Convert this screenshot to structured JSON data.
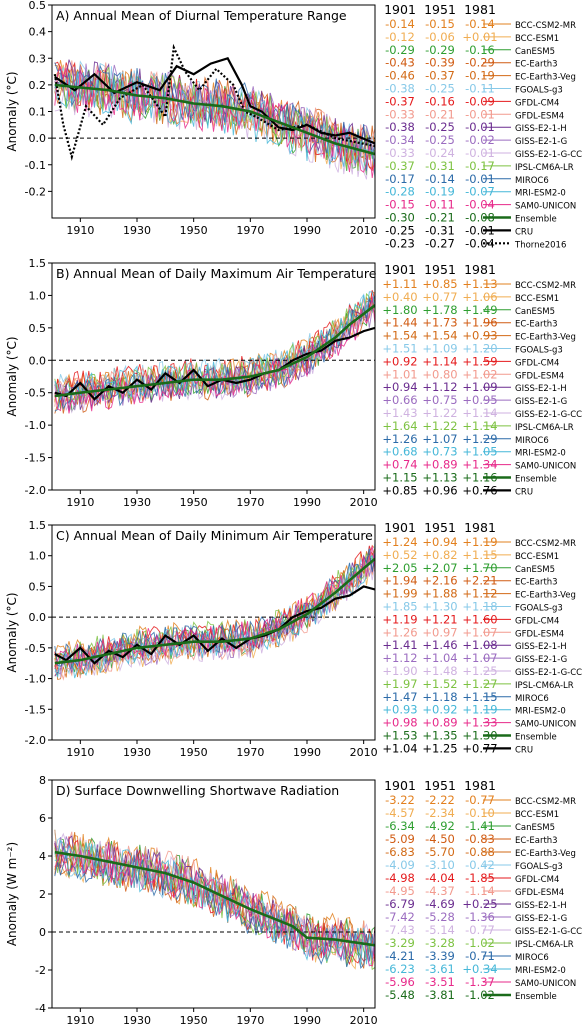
{
  "figure": {
    "models": [
      "BCC-CSM2-MR",
      "BCC-ESM1",
      "CanESM5",
      "EC-Earth3",
      "EC-Earth3-Veg",
      "FGOALS-g3",
      "GFDL-CM4",
      "GFDL-ESM4",
      "GISS-E2-1-H",
      "GISS-E2-1-G",
      "GISS-E2-1-G-CC",
      "IPSL-CM6A-LR",
      "MIROC6",
      "MRI-ESM2-0",
      "SAM0-UNICON"
    ],
    "model_colors": [
      "#e2801f",
      "#f0ad52",
      "#2e9e30",
      "#d05b12",
      "#d26a16",
      "#87c9e8",
      "#e41a1c",
      "#f29a8e",
      "#6a2c8f",
      "#9b6cc0",
      "#cfb2e0",
      "#7dc242",
      "#2b6aa8",
      "#45b7d8",
      "#e7298a"
    ],
    "ensemble_color": "#1a6b1a",
    "obs_color": "#000000"
  },
  "chart_data": [
    {
      "type": "line",
      "title": "A) Annual Mean of Diurnal Temperature Range",
      "ylabel": "Anomaly (°C)",
      "xlim": [
        1900,
        2014
      ],
      "ylim": [
        -0.3,
        0.5
      ],
      "yticks": [
        "-0.2",
        "-0.1",
        "0.0",
        "0.1",
        "0.2",
        "0.3",
        "0.4",
        "0.5"
      ],
      "ytick_values": [
        -0.2,
        -0.1,
        0.0,
        0.1,
        0.2,
        0.3,
        0.4,
        0.5
      ],
      "xticks": [
        "1910",
        "1930",
        "1950",
        "1970",
        "1990",
        "2010"
      ],
      "zero_line": "dashed",
      "column_headers": [
        "1901",
        "1951",
        "1981"
      ],
      "trend_rows": [
        {
          "name": "BCC-CSM2-MR",
          "values": [
            "-0.14",
            "-0.15",
            "-0.14"
          ]
        },
        {
          "name": "BCC-ESM1",
          "values": [
            "-0.12",
            "-0.06",
            "+0.01"
          ]
        },
        {
          "name": "CanESM5",
          "values": [
            "-0.29",
            "-0.29",
            "-0.16"
          ]
        },
        {
          "name": "EC-Earth3",
          "values": [
            "-0.43",
            "-0.39",
            "-0.29"
          ]
        },
        {
          "name": "EC-Earth3-Veg",
          "values": [
            "-0.46",
            "-0.37",
            "-0.19"
          ]
        },
        {
          "name": "FGOALS-g3",
          "values": [
            "-0.38",
            "-0.25",
            "-0.11"
          ]
        },
        {
          "name": "GFDL-CM4",
          "values": [
            "-0.37",
            "-0.16",
            "-0.09"
          ]
        },
        {
          "name": "GFDL-ESM4",
          "values": [
            "-0.33",
            "-0.21",
            "-0.01"
          ]
        },
        {
          "name": "GISS-E2-1-H",
          "values": [
            "-0.38",
            "-0.25",
            "-0.01"
          ]
        },
        {
          "name": "GISS-E2-1-G",
          "values": [
            "-0.34",
            "-0.25",
            "-0.02"
          ]
        },
        {
          "name": "GISS-E2-1-G-CC",
          "values": [
            "-0.33",
            "-0.24",
            "-0.01"
          ]
        },
        {
          "name": "IPSL-CM6A-LR",
          "values": [
            "-0.37",
            "-0.31",
            "-0.17"
          ]
        },
        {
          "name": "MIROC6",
          "values": [
            "-0.17",
            "-0.14",
            "-0.01"
          ]
        },
        {
          "name": "MRI-ESM2-0",
          "values": [
            "-0.28",
            "-0.19",
            "-0.07"
          ]
        },
        {
          "name": "SAM0-UNICON",
          "values": [
            "-0.15",
            "-0.11",
            "-0.04"
          ]
        },
        {
          "name": "Ensemble",
          "values": [
            "-0.30",
            "-0.21",
            "-0.08"
          ]
        },
        {
          "name": "CRU",
          "values": [
            "-0.25",
            "-0.31",
            "-0.01"
          ]
        },
        {
          "name": "Thorne2016",
          "values": [
            "-0.23",
            "-0.27",
            "-0.04"
          ]
        }
      ],
      "ensemble": {
        "x": [
          1901,
          1910,
          1920,
          1930,
          1940,
          1950,
          1960,
          1970,
          1980,
          1990,
          2000,
          2014
        ],
        "y": [
          0.2,
          0.19,
          0.18,
          0.16,
          0.15,
          0.13,
          0.12,
          0.1,
          0.06,
          0.02,
          -0.02,
          -0.06
        ]
      },
      "obs": [
        {
          "name": "CRU",
          "x": [
            1901,
            1908,
            1915,
            1922,
            1930,
            1938,
            1944,
            1950,
            1956,
            1962,
            1967,
            1970,
            1974,
            1980,
            1985,
            1990,
            1995,
            2000,
            2005,
            2014
          ],
          "y": [
            0.23,
            0.18,
            0.24,
            0.17,
            0.21,
            0.18,
            0.27,
            0.24,
            0.28,
            0.3,
            0.2,
            0.12,
            0.1,
            0.04,
            0.03,
            0.05,
            0.02,
            0.01,
            0.02,
            -0.02
          ]
        },
        {
          "name": "Thorne2016",
          "x": [
            1901,
            1904,
            1907,
            1912,
            1918,
            1924,
            1932,
            1940,
            1943,
            1947,
            1952,
            1958,
            1964,
            1968,
            1972,
            1980,
            1990,
            2000,
            2014
          ],
          "y": [
            0.24,
            0.05,
            -0.07,
            0.12,
            0.05,
            0.15,
            0.2,
            0.08,
            0.34,
            0.25,
            0.18,
            0.26,
            0.2,
            0.1,
            0.08,
            0.03,
            0.05,
            0.0,
            -0.03
          ]
        }
      ]
    },
    {
      "type": "line",
      "title": "B) Annual Mean of Daily Maximum Air Temperature",
      "ylabel": "Anomaly (°C)",
      "xlim": [
        1900,
        2014
      ],
      "ylim": [
        -2.0,
        1.5
      ],
      "yticks": [
        "-2.0",
        "-1.5",
        "-1.0",
        "-0.5",
        "0.0",
        "0.5",
        "1.0",
        "1.5"
      ],
      "ytick_values": [
        -2.0,
        -1.5,
        -1.0,
        -0.5,
        0.0,
        0.5,
        1.0,
        1.5
      ],
      "xticks": [
        "1910",
        "1930",
        "1950",
        "1970",
        "1990",
        "2010"
      ],
      "zero_line": "dashed",
      "column_headers": [
        "1901",
        "1951",
        "1981"
      ],
      "trend_rows": [
        {
          "name": "BCC-CSM2-MR",
          "values": [
            "+1.11",
            "+0.85",
            "+1.13"
          ]
        },
        {
          "name": "BCC-ESM1",
          "values": [
            "+0.40",
            "+0.77",
            "+1.06"
          ]
        },
        {
          "name": "CanESM5",
          "values": [
            "+1.80",
            "+1.78",
            "+1.49"
          ]
        },
        {
          "name": "EC-Earth3",
          "values": [
            "+1.44",
            "+1.73",
            "+1.96"
          ]
        },
        {
          "name": "EC-Earth3-Veg",
          "values": [
            "+1.54",
            "+1.54",
            "+0.93"
          ]
        },
        {
          "name": "FGOALS-g3",
          "values": [
            "+1.51",
            "+1.09",
            "+1.20"
          ]
        },
        {
          "name": "GFDL-CM4",
          "values": [
            "+0.92",
            "+1.14",
            "+1.59"
          ]
        },
        {
          "name": "GFDL-ESM4",
          "values": [
            "+1.01",
            "+0.80",
            "+1.02"
          ]
        },
        {
          "name": "GISS-E2-1-H",
          "values": [
            "+0.94",
            "+1.12",
            "+1.09"
          ]
        },
        {
          "name": "GISS-E2-1-G",
          "values": [
            "+0.66",
            "+0.75",
            "+0.95"
          ]
        },
        {
          "name": "GISS-E2-1-G-CC",
          "values": [
            "+1.43",
            "+1.22",
            "+1.14"
          ]
        },
        {
          "name": "IPSL-CM6A-LR",
          "values": [
            "+1.64",
            "+1.22",
            "+1.14"
          ]
        },
        {
          "name": "MIROC6",
          "values": [
            "+1.26",
            "+1.07",
            "+1.29"
          ]
        },
        {
          "name": "MRI-ESM2-0",
          "values": [
            "+0.68",
            "+0.73",
            "+1.05"
          ]
        },
        {
          "name": "SAM0-UNICON",
          "values": [
            "+0.74",
            "+0.89",
            "+1.34"
          ]
        },
        {
          "name": "Ensemble",
          "values": [
            "+1.15",
            "+1.13",
            "+1.16"
          ]
        },
        {
          "name": "CRU",
          "values": [
            "+0.85",
            "+0.96",
            "+0.76"
          ]
        }
      ],
      "ensemble": {
        "x": [
          1901,
          1910,
          1920,
          1930,
          1940,
          1950,
          1960,
          1970,
          1980,
          1990,
          2000,
          2005,
          2014
        ],
        "y": [
          -0.55,
          -0.5,
          -0.45,
          -0.4,
          -0.35,
          -0.3,
          -0.3,
          -0.25,
          -0.15,
          0.05,
          0.35,
          0.55,
          0.85
        ]
      },
      "obs": [
        {
          "name": "CRU",
          "x": [
            1901,
            1905,
            1910,
            1915,
            1920,
            1925,
            1930,
            1935,
            1940,
            1945,
            1950,
            1955,
            1960,
            1965,
            1970,
            1975,
            1980,
            1985,
            1990,
            1995,
            2000,
            2005,
            2010,
            2014
          ],
          "y": [
            -0.5,
            -0.55,
            -0.35,
            -0.6,
            -0.4,
            -0.5,
            -0.3,
            -0.45,
            -0.2,
            -0.35,
            -0.15,
            -0.4,
            -0.3,
            -0.35,
            -0.3,
            -0.2,
            -0.15,
            0.0,
            0.1,
            0.15,
            0.3,
            0.35,
            0.45,
            0.5
          ]
        }
      ]
    },
    {
      "type": "line",
      "title": "C) Annual Mean of Daily Minimum Air Temperature",
      "ylabel": "Anomaly (°C)",
      "xlim": [
        1900,
        2014
      ],
      "ylim": [
        -2.0,
        1.5
      ],
      "yticks": [
        "-2.0",
        "-1.5",
        "-1.0",
        "-0.5",
        "0.0",
        "0.5",
        "1.0",
        "1.5"
      ],
      "ytick_values": [
        -2.0,
        -1.5,
        -1.0,
        -0.5,
        0.0,
        0.5,
        1.0,
        1.5
      ],
      "xticks": [
        "1910",
        "1930",
        "1950",
        "1970",
        "1990",
        "2010"
      ],
      "zero_line": "dashed",
      "column_headers": [
        "1901",
        "1951",
        "1981"
      ],
      "trend_rows": [
        {
          "name": "BCC-CSM2-MR",
          "values": [
            "+1.24",
            "+0.94",
            "+1.19"
          ]
        },
        {
          "name": "BCC-ESM1",
          "values": [
            "+0.52",
            "+0.82",
            "+1.15"
          ]
        },
        {
          "name": "CanESM5",
          "values": [
            "+2.05",
            "+2.07",
            "+1.70"
          ]
        },
        {
          "name": "EC-Earth3",
          "values": [
            "+1.94",
            "+2.16",
            "+2.21"
          ]
        },
        {
          "name": "EC-Earth3-Veg",
          "values": [
            "+1.99",
            "+1.88",
            "+1.12"
          ]
        },
        {
          "name": "FGOALS-g3",
          "values": [
            "+1.85",
            "+1.30",
            "+1.18"
          ]
        },
        {
          "name": "GFDL-CM4",
          "values": [
            "+1.19",
            "+1.21",
            "+1.60"
          ]
        },
        {
          "name": "GFDL-ESM4",
          "values": [
            "+1.26",
            "+0.97",
            "+1.07"
          ]
        },
        {
          "name": "GISS-E2-1-H",
          "values": [
            "+1.41",
            "+1.46",
            "+1.08"
          ]
        },
        {
          "name": "GISS-E2-1-G",
          "values": [
            "+1.12",
            "+1.04",
            "+1.07"
          ]
        },
        {
          "name": "GISS-E2-1-G-CC",
          "values": [
            "+1.90",
            "+1.48",
            "+1.25"
          ]
        },
        {
          "name": "IPSL-CM6A-LR",
          "values": [
            "+1.97",
            "+1.52",
            "+1.27"
          ]
        },
        {
          "name": "MIROC6",
          "values": [
            "+1.47",
            "+1.18",
            "+1.15"
          ]
        },
        {
          "name": "MRI-ESM2-0",
          "values": [
            "+0.93",
            "+0.92",
            "+1.19"
          ]
        },
        {
          "name": "SAM0-UNICON",
          "values": [
            "+0.98",
            "+0.89",
            "+1.33"
          ]
        },
        {
          "name": "Ensemble",
          "values": [
            "+1.53",
            "+1.35",
            "+1.30"
          ]
        },
        {
          "name": "CRU",
          "values": [
            "+1.04",
            "+1.25",
            "+0.77"
          ]
        }
      ],
      "ensemble": {
        "x": [
          1901,
          1910,
          1920,
          1930,
          1940,
          1950,
          1960,
          1970,
          1980,
          1990,
          2000,
          2005,
          2014
        ],
        "y": [
          -0.75,
          -0.7,
          -0.6,
          -0.5,
          -0.45,
          -0.4,
          -0.4,
          -0.35,
          -0.2,
          0.05,
          0.4,
          0.6,
          0.95
        ]
      },
      "obs": [
        {
          "name": "CRU",
          "x": [
            1901,
            1905,
            1910,
            1915,
            1920,
            1925,
            1930,
            1935,
            1940,
            1945,
            1950,
            1955,
            1960,
            1965,
            1970,
            1975,
            1980,
            1985,
            1990,
            1995,
            2000,
            2005,
            2010,
            2014
          ],
          "y": [
            -0.6,
            -0.7,
            -0.5,
            -0.75,
            -0.55,
            -0.65,
            -0.45,
            -0.6,
            -0.3,
            -0.45,
            -0.3,
            -0.55,
            -0.35,
            -0.5,
            -0.35,
            -0.3,
            -0.2,
            0.0,
            0.1,
            0.15,
            0.3,
            0.35,
            0.5,
            0.45
          ]
        }
      ]
    },
    {
      "type": "line",
      "title": "D) Surface Downwelling Shortwave Radiation",
      "ylabel": "Anomaly (W m⁻²)",
      "xlim": [
        1900,
        2014
      ],
      "ylim": [
        -4,
        8
      ],
      "yticks": [
        "-4",
        "-2",
        "0",
        "2",
        "4",
        "6",
        "8"
      ],
      "ytick_values": [
        -4,
        -2,
        0,
        2,
        4,
        6,
        8
      ],
      "xticks": [
        "1910",
        "1930",
        "1950",
        "1970",
        "1990",
        "2010"
      ],
      "zero_line": "dashed",
      "column_headers": [
        "1901",
        "1951",
        "1981"
      ],
      "trend_rows": [
        {
          "name": "BCC-CSM2-MR",
          "values": [
            "-3.22",
            "-2.22",
            "-0.77"
          ]
        },
        {
          "name": "BCC-ESM1",
          "values": [
            "-4.57",
            "-2.34",
            "-0.10"
          ]
        },
        {
          "name": "CanESM5",
          "values": [
            "-6.34",
            "-4.92",
            "-1.41"
          ]
        },
        {
          "name": "EC-Earth3",
          "values": [
            "-5.09",
            "-4.50",
            "-0.83"
          ]
        },
        {
          "name": "EC-Earth3-Veg",
          "values": [
            "-6.83",
            "-5.70",
            "-0.88"
          ]
        },
        {
          "name": "FGOALS-g3",
          "values": [
            "-4.09",
            "-3.10",
            "-0.42"
          ]
        },
        {
          "name": "GFDL-CM4",
          "values": [
            "-4.98",
            "-4.04",
            "-1.85"
          ]
        },
        {
          "name": "GFDL-ESM4",
          "values": [
            "-4.95",
            "-4.37",
            "-1.14"
          ]
        },
        {
          "name": "GISS-E2-1-H",
          "values": [
            "-6.79",
            "-4.69",
            "+0.25"
          ]
        },
        {
          "name": "GISS-E2-1-G",
          "values": [
            "-7.42",
            "-5.28",
            "-1.36"
          ]
        },
        {
          "name": "GISS-E2-1-G-CC",
          "values": [
            "-7.43",
            "-5.14",
            "-0.77"
          ]
        },
        {
          "name": "IPSL-CM6A-LR",
          "values": [
            "-3.29",
            "-3.28",
            "-1.02"
          ]
        },
        {
          "name": "MIROC6",
          "values": [
            "-4.21",
            "-3.39",
            "-0.71"
          ]
        },
        {
          "name": "MRI-ESM2-0",
          "values": [
            "-6.23",
            "-3.61",
            "+0.34"
          ]
        },
        {
          "name": "SAM0-UNICON",
          "values": [
            "-5.96",
            "-3.51",
            "-1.37"
          ]
        },
        {
          "name": "Ensemble",
          "values": [
            "-5.48",
            "-3.81",
            "-1.02"
          ]
        }
      ],
      "ensemble": {
        "x": [
          1901,
          1910,
          1920,
          1930,
          1940,
          1950,
          1960,
          1970,
          1980,
          1985,
          1990,
          2000,
          2014
        ],
        "y": [
          4.2,
          4.0,
          3.7,
          3.4,
          3.1,
          2.6,
          1.9,
          1.2,
          0.6,
          0.3,
          -0.3,
          -0.4,
          -0.7
        ]
      },
      "obs": []
    }
  ]
}
